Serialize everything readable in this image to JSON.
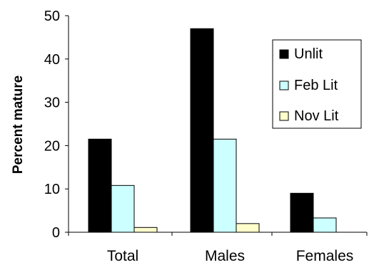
{
  "chart_data": {
    "type": "bar",
    "title": "",
    "xlabel": "",
    "ylabel": "Percent mature",
    "ylim": [
      0,
      50
    ],
    "yticks": [
      0,
      10,
      20,
      30,
      40,
      50
    ],
    "grid": false,
    "legend_position": "top-right",
    "categories": [
      "Total",
      "Males",
      "Females"
    ],
    "series": [
      {
        "name": "Unlit",
        "color": "#000000",
        "values": [
          21.5,
          47,
          9
        ]
      },
      {
        "name": "Feb Lit",
        "color": "#ccffff",
        "values": [
          10.8,
          21.5,
          3.3
        ]
      },
      {
        "name": "Nov Lit",
        "color": "#ffffcc",
        "values": [
          1.1,
          2,
          0
        ]
      }
    ]
  }
}
